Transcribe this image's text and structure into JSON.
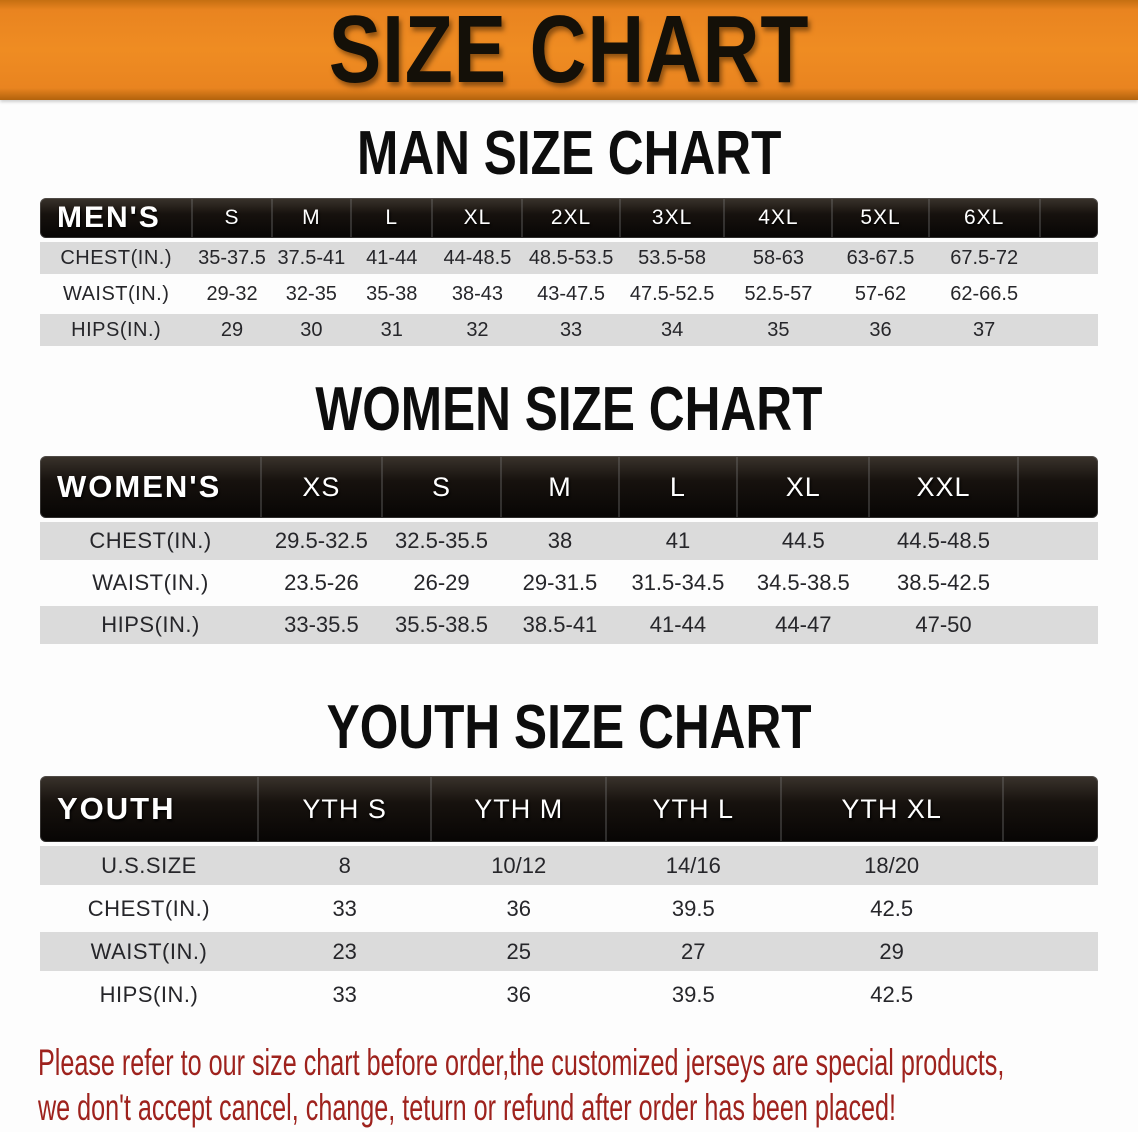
{
  "banner": {
    "title": "SIZE CHART"
  },
  "colors": {
    "banner_orange": "#e98420",
    "header_bar": "#17120e",
    "stripe_gray": "#dbdbdb",
    "footer_red": "#9e221d",
    "text_dark": "#26262a"
  },
  "sections": [
    {
      "id": "men",
      "heading": "MAN SIZE CHART",
      "table": {
        "header_label": "MEN'S",
        "sizes": [
          "S",
          "M",
          "L",
          "XL",
          "2XL",
          "3XL",
          "4XL",
          "5XL",
          "6XL"
        ],
        "rows": [
          {
            "label": "CHEST(IN.)",
            "values": [
              "35-37.5",
              "37.5-41",
              "41-44",
              "44-48.5",
              "48.5-53.5",
              "53.5-58",
              "58-63",
              "63-67.5",
              "67.5-72"
            ]
          },
          {
            "label": "WAIST(IN.)",
            "values": [
              "29-32",
              "32-35",
              "35-38",
              "38-43",
              "43-47.5",
              "47.5-52.5",
              "52.5-57",
              "57-62",
              "62-66.5"
            ]
          },
          {
            "label": "HIPS(IN.)",
            "values": [
              "29",
              "30",
              "31",
              "32",
              "33",
              "34",
              "35",
              "36",
              "37"
            ]
          }
        ]
      }
    },
    {
      "id": "women",
      "heading": "WOMEN SIZE CHART",
      "table": {
        "header_label": "WOMEN'S",
        "sizes": [
          "XS",
          "S",
          "M",
          "L",
          "XL",
          "XXL"
        ],
        "rows": [
          {
            "label": "CHEST(IN.)",
            "values": [
              "29.5-32.5",
              "32.5-35.5",
              "38",
              "41",
              "44.5",
              "44.5-48.5"
            ]
          },
          {
            "label": "WAIST(IN.)",
            "values": [
              "23.5-26",
              "26-29",
              "29-31.5",
              "31.5-34.5",
              "34.5-38.5",
              "38.5-42.5"
            ]
          },
          {
            "label": "HIPS(IN.)",
            "values": [
              "33-35.5",
              "35.5-38.5",
              "38.5-41",
              "41-44",
              "44-47",
              "47-50"
            ]
          }
        ]
      }
    },
    {
      "id": "youth",
      "heading": "YOUTH SIZE CHART",
      "table": {
        "header_label": "YOUTH",
        "sizes": [
          "YTH S",
          "YTH M",
          "YTH L",
          "YTH XL"
        ],
        "rows": [
          {
            "label": "U.S.SIZE",
            "values": [
              "8",
              "10/12",
              "14/16",
              "18/20"
            ]
          },
          {
            "label": "CHEST(IN.)",
            "values": [
              "33",
              "36",
              "39.5",
              "42.5"
            ]
          },
          {
            "label": "WAIST(IN.)",
            "values": [
              "23",
              "25",
              "27",
              "29"
            ]
          },
          {
            "label": "HIPS(IN.)",
            "values": [
              "33",
              "36",
              "39.5",
              "42.5"
            ]
          }
        ]
      }
    }
  ],
  "footer_note": {
    "line1": "Please refer to our size chart before order,the customized jerseys are special products,",
    "line2": "we don't accept cancel, change, teturn or refund after order has been placed!"
  }
}
